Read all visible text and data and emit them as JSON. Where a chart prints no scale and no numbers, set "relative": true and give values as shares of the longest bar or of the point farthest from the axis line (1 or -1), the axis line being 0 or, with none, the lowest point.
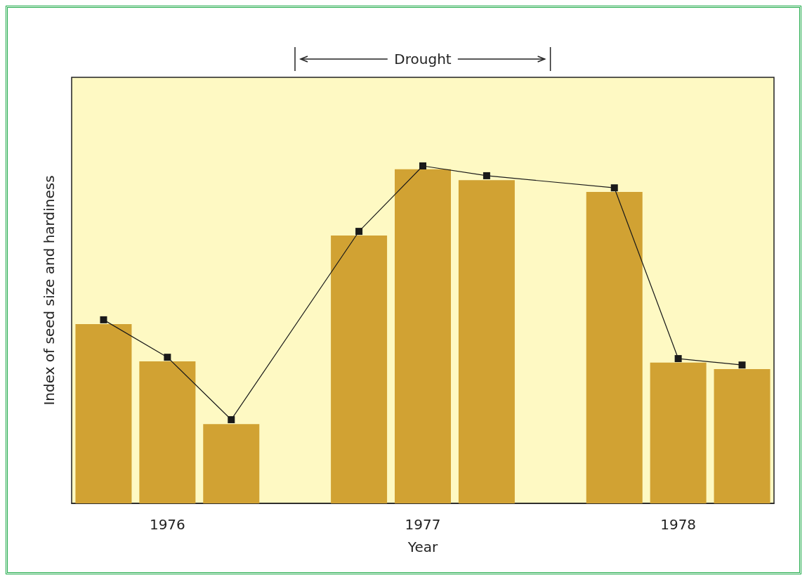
{
  "chart_data": {
    "type": "bar",
    "relative": true,
    "xlabel": "Year",
    "ylabel": "Index of seed size and hardiness",
    "categories": [
      null,
      "1976",
      null,
      null,
      null,
      "1977",
      null,
      null,
      null,
      "1978",
      null
    ],
    "series": [
      {
        "color": "#d1a233",
        "values": [
          0.531,
          0.421,
          0.235,
          null,
          0.794,
          0.99,
          0.958,
          null,
          0.923,
          0.417,
          0.398
        ]
      },
      {
        "type": "line",
        "color": "#1a1a1a",
        "marker": "square",
        "line_style": "solid",
        "values": [
          0.544,
          0.433,
          0.248,
          null,
          0.806,
          1,
          0.971,
          null,
          0.935,
          0.429,
          0.41
        ]
      }
    ],
    "annotations": [
      "Drought"
    ],
    "grid": false
  }
}
